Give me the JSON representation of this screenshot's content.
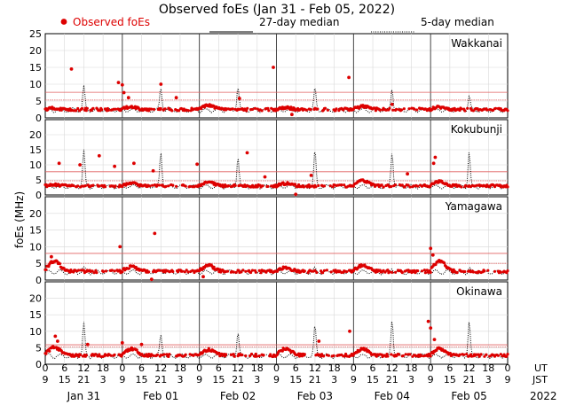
{
  "chart_data": {
    "type": "scatter",
    "title": "Observed foEs (Jan 31 - Feb 05, 2022)",
    "ylabel": "foEs (MHz)",
    "ylim": [
      0,
      25
    ],
    "yticks": [
      0,
      5,
      10,
      15,
      20,
      25
    ],
    "grid": true,
    "legend": {
      "placement": "top",
      "entries": [
        "Observed foEs",
        "27-day median",
        "5-day median"
      ],
      "colors": [
        "#dd0000",
        "#000000",
        "#000000"
      ]
    },
    "x_axis": {
      "ut_label": "UT",
      "jst_label": "JST",
      "year_label": "2022",
      "ut_ticks": [
        "0",
        "6",
        "12",
        "18",
        "0",
        "6",
        "12",
        "18",
        "0",
        "6",
        "12",
        "18",
        "0",
        "6",
        "12",
        "18",
        "0",
        "6",
        "12",
        "18",
        "0",
        "6",
        "12",
        "18",
        "0"
      ],
      "jst_ticks": [
        "9",
        "15",
        "21",
        "3",
        "9",
        "15",
        "21",
        "3",
        "9",
        "15",
        "21",
        "3",
        "9",
        "15",
        "21",
        "3",
        "9",
        "15",
        "21",
        "3",
        "9",
        "15",
        "21",
        "3",
        "9"
      ],
      "date_labels": [
        "Jan 31",
        "Feb 01",
        "Feb 02",
        "Feb 03",
        "Feb 04",
        "Feb 05"
      ]
    },
    "panels": [
      {
        "station": "Wakkanai",
        "median_27day": 5.3,
        "median_27day_upper": 7.6,
        "base_level": 2.3,
        "day_peaks": [
          {
            "day": 0,
            "noon": 2.6,
            "evening": 9.0
          },
          {
            "day": 1,
            "noon": 3.1,
            "evening": 9.2
          },
          {
            "day": 2,
            "noon": 3.5,
            "evening": 9.5
          },
          {
            "day": 3,
            "noon": 2.8,
            "evening": 8.5
          },
          {
            "day": 4,
            "noon": 3.2,
            "evening": 8.8
          },
          {
            "day": 5,
            "noon": 3.0,
            "evening": 6.5
          }
        ],
        "outliers": [
          {
            "day": 0.34,
            "value": 14.5
          },
          {
            "day": 0.95,
            "value": 10.5
          },
          {
            "day": 1.0,
            "value": 9.8
          },
          {
            "day": 1.02,
            "value": 7.5
          },
          {
            "day": 1.08,
            "value": 6.0
          },
          {
            "day": 1.5,
            "value": 10.0
          },
          {
            "day": 1.7,
            "value": 6.0
          },
          {
            "day": 2.52,
            "value": 5.8
          },
          {
            "day": 2.96,
            "value": 15.0
          },
          {
            "day": 3.2,
            "value": 1.0
          },
          {
            "day": 3.94,
            "value": 12.0
          },
          {
            "day": 4.5,
            "value": 4.0
          }
        ]
      },
      {
        "station": "Kokubunji",
        "median_27day": 4.7,
        "median_27day_upper": 7.7,
        "base_level": 2.8,
        "day_peaks": [
          {
            "day": 0,
            "noon": 3.2,
            "evening": 14.5
          },
          {
            "day": 1,
            "noon": 3.8,
            "evening": 14.5
          },
          {
            "day": 2,
            "noon": 4.0,
            "evening": 13.0
          },
          {
            "day": 3,
            "noon": 3.6,
            "evening": 14.5
          },
          {
            "day": 4,
            "noon": 4.5,
            "evening": 14.5
          },
          {
            "day": 5,
            "noon": 4.3,
            "evening": 14.0
          }
        ],
        "outliers": [
          {
            "day": 0.18,
            "value": 10.5
          },
          {
            "day": 0.45,
            "value": 10.0
          },
          {
            "day": 0.7,
            "value": 13.0
          },
          {
            "day": 0.9,
            "value": 9.5
          },
          {
            "day": 1.15,
            "value": 10.5
          },
          {
            "day": 1.4,
            "value": 8.0
          },
          {
            "day": 1.97,
            "value": 10.2
          },
          {
            "day": 2.62,
            "value": 14.0
          },
          {
            "day": 2.85,
            "value": 6.0
          },
          {
            "day": 3.25,
            "value": 0.2
          },
          {
            "day": 3.45,
            "value": 6.5
          },
          {
            "day": 4.7,
            "value": 7.0
          },
          {
            "day": 5.04,
            "value": 10.5
          },
          {
            "day": 5.06,
            "value": 12.5
          }
        ]
      },
      {
        "station": "Yamagawa",
        "median_27day": 5.0,
        "median_27day_upper": 8.0,
        "base_level": 2.4,
        "day_peaks": [
          {
            "day": 0,
            "noon": 5.5,
            "evening": 3.5
          },
          {
            "day": 1,
            "noon": 3.8,
            "evening": 3.5
          },
          {
            "day": 2,
            "noon": 4.2,
            "evening": 3.5
          },
          {
            "day": 3,
            "noon": 3.5,
            "evening": 3.2
          },
          {
            "day": 4,
            "noon": 4.2,
            "evening": 3.8
          },
          {
            "day": 5,
            "noon": 5.5,
            "evening": 3.5
          }
        ],
        "outliers": [
          {
            "day": 0.97,
            "value": 10.0
          },
          {
            "day": 1.42,
            "value": 14.0
          },
          {
            "day": 1.38,
            "value": 0.2
          },
          {
            "day": 2.05,
            "value": 1.0
          },
          {
            "day": 5.0,
            "value": 9.5
          },
          {
            "day": 5.03,
            "value": 7.5
          },
          {
            "day": 0.08,
            "value": 7.0
          }
        ]
      },
      {
        "station": "Okinawa",
        "median_27day": 5.2,
        "median_27day_upper": 5.9,
        "base_level": 2.5,
        "day_peaks": [
          {
            "day": 0,
            "noon": 5.0,
            "evening": 12.5
          },
          {
            "day": 1,
            "noon": 4.5,
            "evening": 9.5
          },
          {
            "day": 2,
            "noon": 4.2,
            "evening": 10.0
          },
          {
            "day": 3,
            "noon": 4.5,
            "evening": 11.5
          },
          {
            "day": 4,
            "noon": 4.5,
            "evening": 14.0
          },
          {
            "day": 5,
            "noon": 4.5,
            "evening": 13.0
          }
        ],
        "outliers": [
          {
            "day": 0.13,
            "value": 8.5
          },
          {
            "day": 0.16,
            "value": 7.0
          },
          {
            "day": 0.55,
            "value": 6.0
          },
          {
            "day": 1.0,
            "value": 6.5
          },
          {
            "day": 1.25,
            "value": 6.0
          },
          {
            "day": 3.95,
            "value": 10.0
          },
          {
            "day": 4.97,
            "value": 13.0
          },
          {
            "day": 5.0,
            "value": 11.0
          },
          {
            "day": 5.05,
            "value": 7.5
          },
          {
            "day": 3.55,
            "value": 7.0
          }
        ]
      }
    ]
  }
}
